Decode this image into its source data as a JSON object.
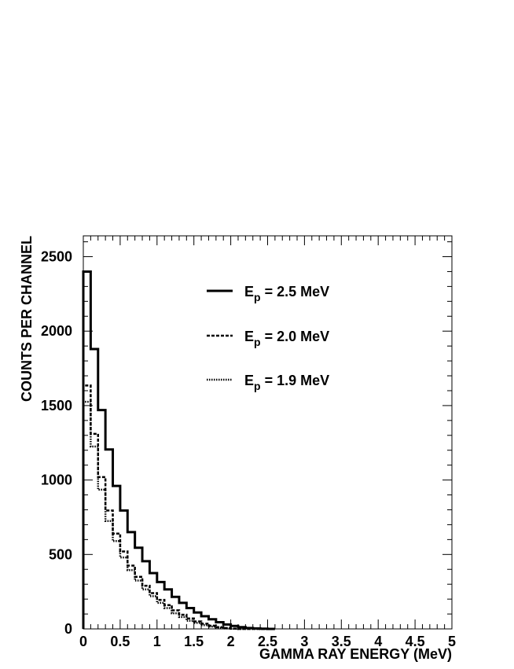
{
  "chart_data": {
    "type": "line",
    "title": "",
    "xlabel": "GAMMA RAY ENERGY (MeV)",
    "ylabel": "COUNTS PER CHANNEL",
    "xlim": [
      0,
      5
    ],
    "ylim": [
      0,
      2640
    ],
    "x_ticks": [
      "0",
      "0.5",
      "1",
      "1.5",
      "2",
      "2.5",
      "3",
      "3.5",
      "4",
      "4.5",
      "5"
    ],
    "y_ticks": [
      "0",
      "500",
      "1000",
      "1500",
      "2000",
      "2500"
    ],
    "grid": false,
    "legend_placement": "top-center",
    "bin_width": 0.1,
    "series": [
      {
        "name": "E_p = 2.5 MeV",
        "label_main": "E",
        "label_sub": "p",
        "label_rest": " = 2.5 MeV",
        "style": "solid",
        "values": [
          2400,
          1880,
          1470,
          1205,
          960,
          795,
          650,
          545,
          455,
          375,
          315,
          265,
          215,
          175,
          140,
          110,
          85,
          65,
          45,
          30,
          20,
          12,
          6,
          3,
          1,
          0
        ]
      },
      {
        "name": "E_p = 2.0 MeV",
        "label_main": "E",
        "label_sub": "p",
        "label_rest": " = 2.0 MeV",
        "style": "dashed",
        "values": [
          1635,
          1310,
          1020,
          795,
          640,
          520,
          425,
          350,
          290,
          240,
          195,
          160,
          125,
          95,
          70,
          50,
          35,
          22,
          12,
          6,
          2,
          0,
          0,
          0,
          0,
          0
        ]
      },
      {
        "name": "E_p = 1.9 MeV",
        "label_main": "E",
        "label_sub": "p",
        "label_rest": " = 1.9 MeV",
        "style": "dotted",
        "values": [
          1525,
          1225,
          935,
          725,
          590,
          480,
          395,
          325,
          265,
          220,
          175,
          140,
          105,
          80,
          55,
          40,
          25,
          15,
          8,
          3,
          1,
          0,
          0,
          0,
          0,
          0
        ]
      }
    ]
  }
}
